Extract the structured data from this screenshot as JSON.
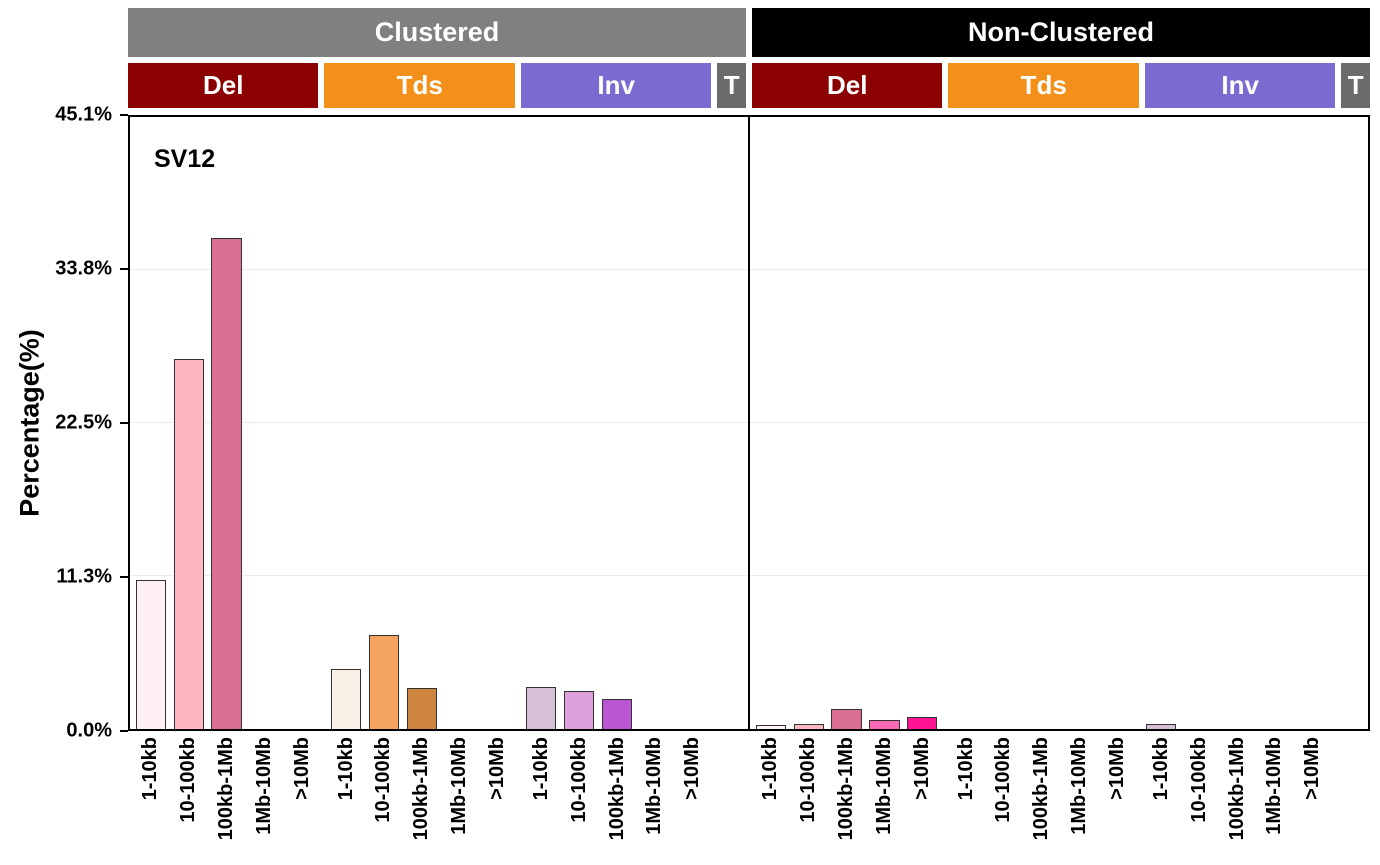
{
  "chart_data": {
    "type": "bar",
    "title": "SV12",
    "ylabel": "Percentage(%)",
    "ylim": [
      0,
      45.1
    ],
    "yticks_top_to_bottom": [
      "45.1%",
      "33.8%",
      "22.5%",
      "11.3%",
      "0.0%"
    ],
    "grid": "faint horizontal gridlines at each y tick",
    "legend": "none",
    "size_bins": [
      "1-10kb",
      "10-100kb",
      "100kb-1Mb",
      "1Mb-10Mb",
      ">10Mb"
    ],
    "bar_border_color": "#333333",
    "grid_color": "#ebebeb",
    "panels": [
      {
        "name": "Clustered",
        "header_color": "#808080",
        "header_text_color": "#ffffff",
        "groups": [
          {
            "name": "Del",
            "header_color": "#8b0000",
            "bar_colors": [
              "#fff0f5",
              "#ffb6c1",
              "#db7093",
              "#ff69b4",
              "#ff1493"
            ],
            "values": [
              11.0,
              27.3,
              36.2,
              0,
              0
            ]
          },
          {
            "name": "Tds",
            "header_color": "#f39019",
            "bar_colors": [
              "#faf0e6",
              "#f4a460",
              "#cd853f",
              "#d2691e",
              "#a0522d"
            ],
            "values": [
              4.4,
              6.9,
              3.0,
              0,
              0
            ]
          },
          {
            "name": "Inv",
            "header_color": "#7a6bd1",
            "bar_colors": [
              "#d8bfd8",
              "#dda0dd",
              "#ba55d3",
              "#9932cc",
              "#8b008b"
            ],
            "values": [
              3.1,
              2.8,
              2.2,
              0,
              0
            ]
          },
          {
            "name": "T",
            "header_color": "#6b6b6b",
            "bar_colors": [
              "#6b6b6b"
            ],
            "values": [
              0
            ],
            "has_bin_labels": false
          }
        ]
      },
      {
        "name": "Non-Clustered",
        "header_color": "#000000",
        "header_text_color": "#ffffff",
        "groups": [
          {
            "name": "Del",
            "header_color": "#8b0000",
            "bar_colors": [
              "#fff0f5",
              "#ffb6c1",
              "#db7093",
              "#ff69b4",
              "#ff1493"
            ],
            "values": [
              0.3,
              0.4,
              1.5,
              0.7,
              0.9
            ]
          },
          {
            "name": "Tds",
            "header_color": "#f39019",
            "bar_colors": [
              "#faf0e6",
              "#f4a460",
              "#cd853f",
              "#d2691e",
              "#a0522d"
            ],
            "values": [
              0,
              0,
              0,
              0,
              0
            ]
          },
          {
            "name": "Inv",
            "header_color": "#7a6bd1",
            "bar_colors": [
              "#d8bfd8",
              "#dda0dd",
              "#ba55d3",
              "#9932cc",
              "#8b008b"
            ],
            "values": [
              0.35,
              0,
              0,
              0,
              0
            ]
          },
          {
            "name": "T",
            "header_color": "#6b6b6b",
            "bar_colors": [
              "#6b6b6b"
            ],
            "values": [
              0
            ],
            "has_bin_labels": false
          }
        ]
      }
    ]
  }
}
